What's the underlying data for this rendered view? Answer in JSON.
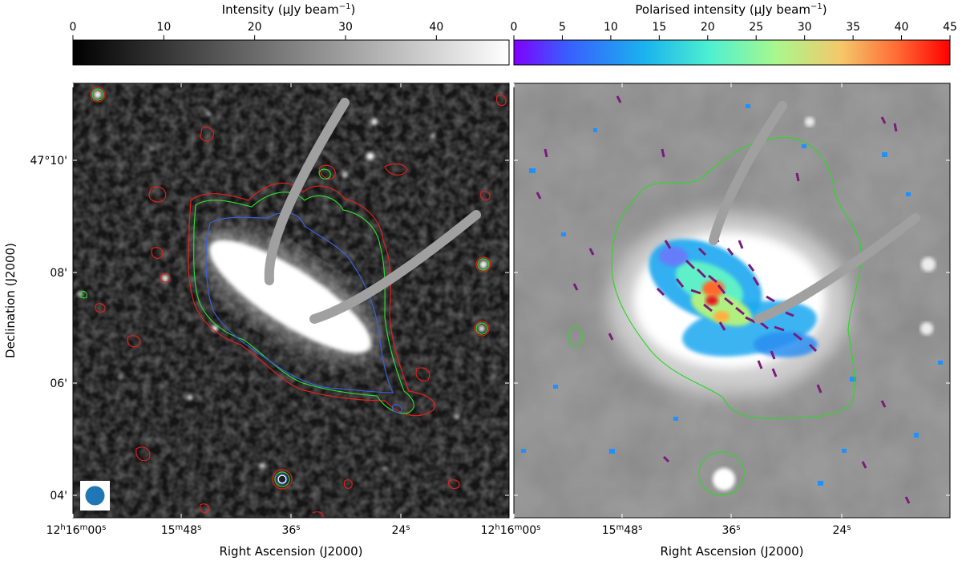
{
  "colorbars": {
    "left": {
      "label": "Intensity (μJy beam",
      "label_exp": "−1",
      "label_close": ")",
      "range": [
        0,
        48
      ],
      "ticks": [
        "0",
        "10",
        "20",
        "30",
        "40"
      ],
      "tick_values": [
        0,
        10,
        20,
        30,
        40
      ],
      "colormap": "greys"
    },
    "right": {
      "label": "Polarised intensity (μJy beam",
      "label_exp": "−1",
      "label_close": ")",
      "range": [
        0,
        45
      ],
      "ticks": [
        "0",
        "5",
        "10",
        "15",
        "20",
        "25",
        "30",
        "35",
        "40",
        "45"
      ],
      "tick_values": [
        0,
        5,
        10,
        15,
        20,
        25,
        30,
        35,
        40,
        45
      ],
      "colormap": "rainbow"
    }
  },
  "axes": {
    "ylabel": "Declination (J2000)",
    "xlabel_left": "Right Ascension (J2000)",
    "xlabel_right": "Right Ascension (J2000)",
    "y_ticks": [
      {
        "label": "47°10'"
      },
      {
        "label": "08'"
      },
      {
        "label": "06'"
      },
      {
        "label": "04'"
      }
    ],
    "x_ticks": [
      {
        "main": "12",
        "sup1": "h",
        "mid": "16",
        "sup2": "m",
        "tail": "00",
        "sup3": "s"
      },
      {
        "main": "15",
        "sup1": "m",
        "mid": "48",
        "sup2": "s",
        "tail": "",
        "sup3": ""
      },
      {
        "main": "36",
        "sup1": "s",
        "mid": "",
        "sup2": "",
        "tail": "",
        "sup3": ""
      },
      {
        "main": "24",
        "sup1": "s",
        "mid": "",
        "sup2": "",
        "tail": "",
        "sup3": ""
      }
    ]
  },
  "contour_colors": {
    "red": "#e0201b",
    "green": "#2fd62a",
    "blue": "#3a5fd8",
    "vector": "#7a1a7a",
    "band": "#a0a0a0",
    "beam": "#1f77b4"
  }
}
